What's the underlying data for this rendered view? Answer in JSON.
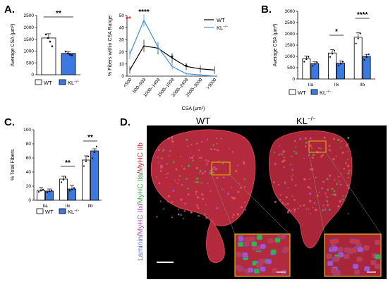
{
  "panels": {
    "A": "A.",
    "B": "B.",
    "C": "C.",
    "D": "D."
  },
  "colors": {
    "wt": "#ffffff",
    "kl": "#3b79e0",
    "wt_line": "#000000",
    "kl_line": "#3b8ee8",
    "stain_laminin": "#5b6fd6",
    "stain_iia": "#3fae49",
    "stain_iib": "#d0342c",
    "stain_iix": "#b24fc9",
    "micro_bg": "#000000",
    "highlight": "#e6b800"
  },
  "legend": {
    "wt": "WT",
    "kl": "KL",
    "kl_sup": "−/−"
  },
  "chart_data": [
    {
      "id": "A-left",
      "type": "bar",
      "categories": [
        "WT",
        "KL−/−"
      ],
      "values": [
        1550,
        900
      ],
      "errors": [
        180,
        80
      ],
      "points": [
        [
          1700,
          1550,
          1400,
          1200
        ],
        [
          980,
          900,
          850,
          820
        ]
      ],
      "ylabel": "Average CSA (μm²)",
      "ylim": [
        0,
        2500
      ],
      "yticks": [
        "0",
        "500",
        "1000",
        "1500",
        "2000",
        "2500"
      ],
      "significance": [
        {
          "label": "**",
          "between": [
            0,
            1
          ]
        }
      ]
    },
    {
      "id": "A-right",
      "type": "line",
      "categories": [
        "<500",
        "500–999",
        "1000–1499",
        "1500–1999",
        "2000–2499",
        "2500–3000",
        ">3000"
      ],
      "series": [
        {
          "name": "WT",
          "values": [
            5,
            25,
            23,
            15,
            8,
            6,
            5
          ],
          "errors": [
            3,
            5,
            5,
            4,
            3,
            3,
            3
          ]
        },
        {
          "name": "KL−/−",
          "values": [
            18,
            46,
            24,
            8,
            2,
            1,
            0
          ],
          "errors": [
            4,
            5,
            4,
            3,
            1,
            1,
            0
          ]
        }
      ],
      "xlabel": "CSA (μm²)",
      "ylabel": "% Fibers within CSA Range",
      "ylim": [
        0,
        50
      ],
      "yticks": [
        "0",
        "10",
        "20",
        "30",
        "40",
        "50"
      ],
      "significance": [
        {
          "label": "**",
          "index": 0
        },
        {
          "label": "****",
          "index": 1
        },
        {
          "label": "*",
          "index": 3
        },
        {
          "label": "*",
          "index": 4
        }
      ]
    },
    {
      "id": "B",
      "type": "bar",
      "categories": [
        "IIa",
        "IIx",
        "IIb"
      ],
      "series": [
        {
          "name": "WT",
          "values": [
            900,
            1150,
            1850
          ],
          "errors": [
            120,
            150,
            200
          ]
        },
        {
          "name": "KL−/−",
          "values": [
            680,
            700,
            1000
          ],
          "errors": [
            80,
            100,
            90
          ]
        }
      ],
      "ylabel": "Average CSA (μm²)",
      "ylim": [
        0,
        3000
      ],
      "yticks": [
        "0",
        "500",
        "1000",
        "1500",
        "2000",
        "2500",
        "3000"
      ],
      "significance": [
        {
          "label": "*",
          "category": 1
        },
        {
          "label": "****",
          "category": 2
        }
      ]
    },
    {
      "id": "C",
      "type": "bar",
      "categories": [
        "IIa",
        "IIx",
        "IIb"
      ],
      "series": [
        {
          "name": "WT",
          "values": [
            14,
            30,
            57
          ],
          "errors": [
            4,
            4,
            6
          ]
        },
        {
          "name": "KL−/−",
          "values": [
            13,
            16,
            70
          ],
          "errors": [
            3,
            5,
            3
          ]
        }
      ],
      "ylabel": "% Total Fibers",
      "ylim": [
        0,
        100
      ],
      "yticks": [
        "0",
        "20",
        "40",
        "60",
        "80",
        "100"
      ],
      "significance": [
        {
          "label": "**",
          "category": 1
        },
        {
          "label": "**",
          "category": 2
        }
      ]
    }
  ],
  "micrograph": {
    "wt_label": "WT",
    "kl_label": "KL",
    "kl_sup": "−/−",
    "stain": {
      "laminin": "Laminin",
      "sep1": "/",
      "iix": "MyHC IIx",
      "sep2": "/",
      "iia": "MyHC IIa",
      "sep3": "/",
      "iib": "MyHC IIb"
    }
  }
}
